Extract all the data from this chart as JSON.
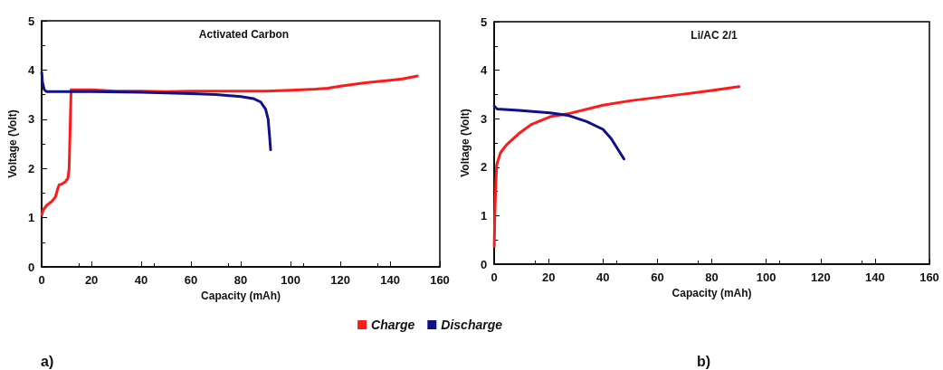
{
  "chart_data": [
    {
      "type": "line",
      "title": "Activated Carbon",
      "xlabel": "Capacity (mAh)",
      "ylabel": "Voltage (Volt)",
      "xlim": [
        0,
        160
      ],
      "xticks": [
        0,
        20,
        40,
        60,
        80,
        100,
        120,
        140,
        160
      ],
      "ylim": [
        0,
        5
      ],
      "yticks": [
        0,
        1,
        2,
        3,
        4,
        5
      ],
      "grid": false,
      "legend": "bottom",
      "marker": "none",
      "line_style": "solid",
      "annotations": [
        "a)"
      ],
      "series": [
        {
          "name": "Charge",
          "color": "#ff1a1a",
          "x": [
            0,
            0.5,
            2,
            4,
            5.5,
            6.5,
            7,
            8,
            9.5,
            10.5,
            11,
            11.3,
            11.6,
            11.8,
            15,
            20,
            30,
            40,
            50,
            60,
            70,
            80,
            90,
            100,
            110,
            115,
            120,
            130,
            140,
            145,
            151
          ],
          "values": [
            1.05,
            1.15,
            1.25,
            1.33,
            1.42,
            1.6,
            1.67,
            1.68,
            1.73,
            1.8,
            2.0,
            2.6,
            3.2,
            3.6,
            3.6,
            3.6,
            3.57,
            3.57,
            3.56,
            3.57,
            3.57,
            3.57,
            3.57,
            3.59,
            3.61,
            3.63,
            3.67,
            3.74,
            3.79,
            3.82,
            3.88
          ]
        },
        {
          "name": "Discharge",
          "color": "#10108a",
          "x": [
            0,
            0.3,
            1,
            2,
            10,
            20,
            40,
            60,
            70,
            80,
            85,
            88,
            90,
            91,
            91.5,
            92
          ],
          "values": [
            3.95,
            3.75,
            3.6,
            3.56,
            3.56,
            3.56,
            3.55,
            3.52,
            3.5,
            3.46,
            3.42,
            3.35,
            3.2,
            3.0,
            2.7,
            2.38
          ]
        }
      ]
    },
    {
      "type": "line",
      "title": "Li/AC 2/1",
      "xlabel": "Capacity (mAh)",
      "ylabel": "Voltage (Volt)",
      "xlim": [
        0,
        160
      ],
      "xticks": [
        0,
        20,
        40,
        60,
        80,
        100,
        120,
        140,
        160
      ],
      "ylim": [
        0,
        5
      ],
      "yticks": [
        0,
        1,
        2,
        3,
        4,
        5
      ],
      "grid": false,
      "marker": "none",
      "line_style": "solid",
      "annotations": [
        "b)"
      ],
      "series": [
        {
          "color": "#ff1a1a",
          "x": [
            0,
            0.2,
            0.6,
            0.9,
            2.3,
            4.5,
            9,
            13.6,
            20.5,
            27,
            40,
            50,
            60,
            70,
            80,
            90
          ],
          "values": [
            0.37,
            1.0,
            1.7,
            2.05,
            2.3,
            2.46,
            2.69,
            2.88,
            3.04,
            3.1,
            3.28,
            3.37,
            3.44,
            3.51,
            3.58,
            3.66
          ]
        },
        {
          "color": "#10108a",
          "x": [
            0,
            1.1,
            9,
            20.5,
            27,
            34,
            40,
            43,
            47.7
          ],
          "values": [
            3.26,
            3.2,
            3.17,
            3.12,
            3.07,
            2.94,
            2.78,
            2.59,
            2.17
          ]
        }
      ]
    }
  ]
}
